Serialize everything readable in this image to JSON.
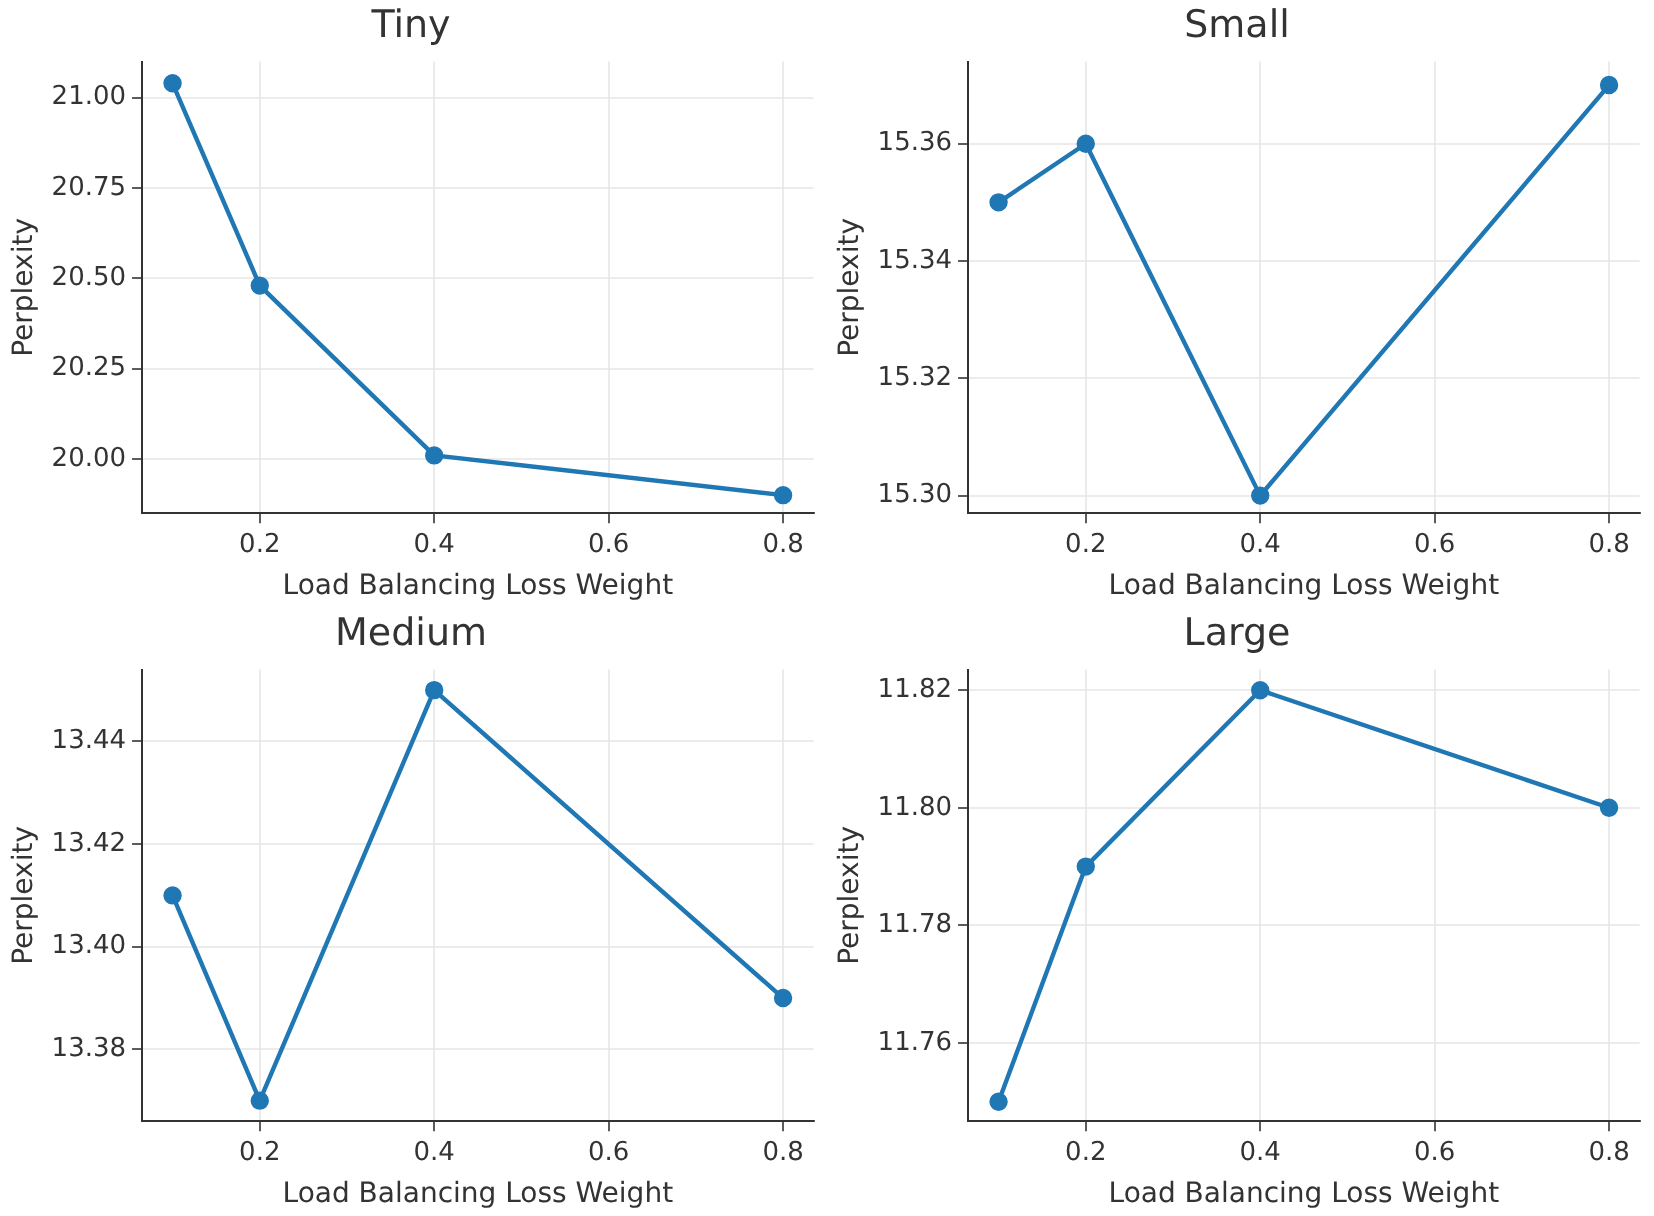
{
  "chart_data": [
    {
      "type": "line",
      "title": "Tiny",
      "xlabel": "Load Balancing Loss Weight",
      "ylabel": "Perplexity",
      "x": [
        0.1,
        0.2,
        0.4,
        0.8
      ],
      "values": [
        21.04,
        20.48,
        20.01,
        19.9
      ],
      "color": "#1f77b4",
      "marker": "circle",
      "line_style": "solid",
      "grid": true,
      "xlim": [
        0.065,
        0.835
      ],
      "ylim": [
        19.85,
        21.1
      ],
      "xticks": [
        0.2,
        0.4,
        0.6,
        0.8
      ],
      "yticks": [
        {
          "value": 20,
          "label": "20.00"
        },
        {
          "value": 20.25,
          "label": "20.25"
        },
        {
          "value": 20.5,
          "label": "20.50"
        },
        {
          "value": 20.75,
          "label": "20.75"
        },
        {
          "value": 21,
          "label": "21.00"
        }
      ]
    },
    {
      "type": "line",
      "title": "Small",
      "xlabel": "Load Balancing Loss Weight",
      "ylabel": "Perplexity",
      "x": [
        0.1,
        0.2,
        0.4,
        0.8
      ],
      "values": [
        15.35,
        15.36,
        15.3,
        15.37
      ],
      "color": "#1f77b4",
      "marker": "circle",
      "line_style": "solid",
      "grid": true,
      "xlim": [
        0.065,
        0.835
      ],
      "ylim": [
        15.297,
        15.374
      ],
      "xticks": [
        0.2,
        0.4,
        0.6,
        0.8
      ],
      "yticks": [
        {
          "value": 15.3,
          "label": "15.30"
        },
        {
          "value": 15.32,
          "label": "15.32"
        },
        {
          "value": 15.34,
          "label": "15.34"
        },
        {
          "value": 15.36,
          "label": "15.36"
        }
      ]
    },
    {
      "type": "line",
      "title": "Medium",
      "xlabel": "Load Balancing Loss Weight",
      "ylabel": "Perplexity",
      "x": [
        0.1,
        0.2,
        0.4,
        0.8
      ],
      "values": [
        13.41,
        13.37,
        13.45,
        13.39
      ],
      "color": "#1f77b4",
      "marker": "circle",
      "line_style": "solid",
      "grid": true,
      "xlim": [
        0.065,
        0.835
      ],
      "ylim": [
        13.366,
        13.454
      ],
      "xticks": [
        0.2,
        0.4,
        0.6,
        0.8
      ],
      "yticks": [
        {
          "value": 13.38,
          "label": "13.38"
        },
        {
          "value": 13.4,
          "label": "13.40"
        },
        {
          "value": 13.42,
          "label": "13.42"
        },
        {
          "value": 13.44,
          "label": "13.44"
        }
      ]
    },
    {
      "type": "line",
      "title": "Large",
      "xlabel": "Load Balancing Loss Weight",
      "ylabel": "Perplexity",
      "x": [
        0.1,
        0.2,
        0.4,
        0.8
      ],
      "values": [
        11.75,
        11.79,
        11.82,
        11.8
      ],
      "color": "#1f77b4",
      "marker": "circle",
      "line_style": "solid",
      "grid": true,
      "xlim": [
        0.065,
        0.835
      ],
      "ylim": [
        11.7467,
        11.8235
      ],
      "xticks": [
        0.2,
        0.4,
        0.6,
        0.8
      ],
      "yticks": [
        {
          "value": 11.76,
          "label": "11.76"
        },
        {
          "value": 11.78,
          "label": "11.78"
        },
        {
          "value": 11.8,
          "label": "11.80"
        },
        {
          "value": 11.82,
          "label": "11.82"
        }
      ]
    }
  ]
}
